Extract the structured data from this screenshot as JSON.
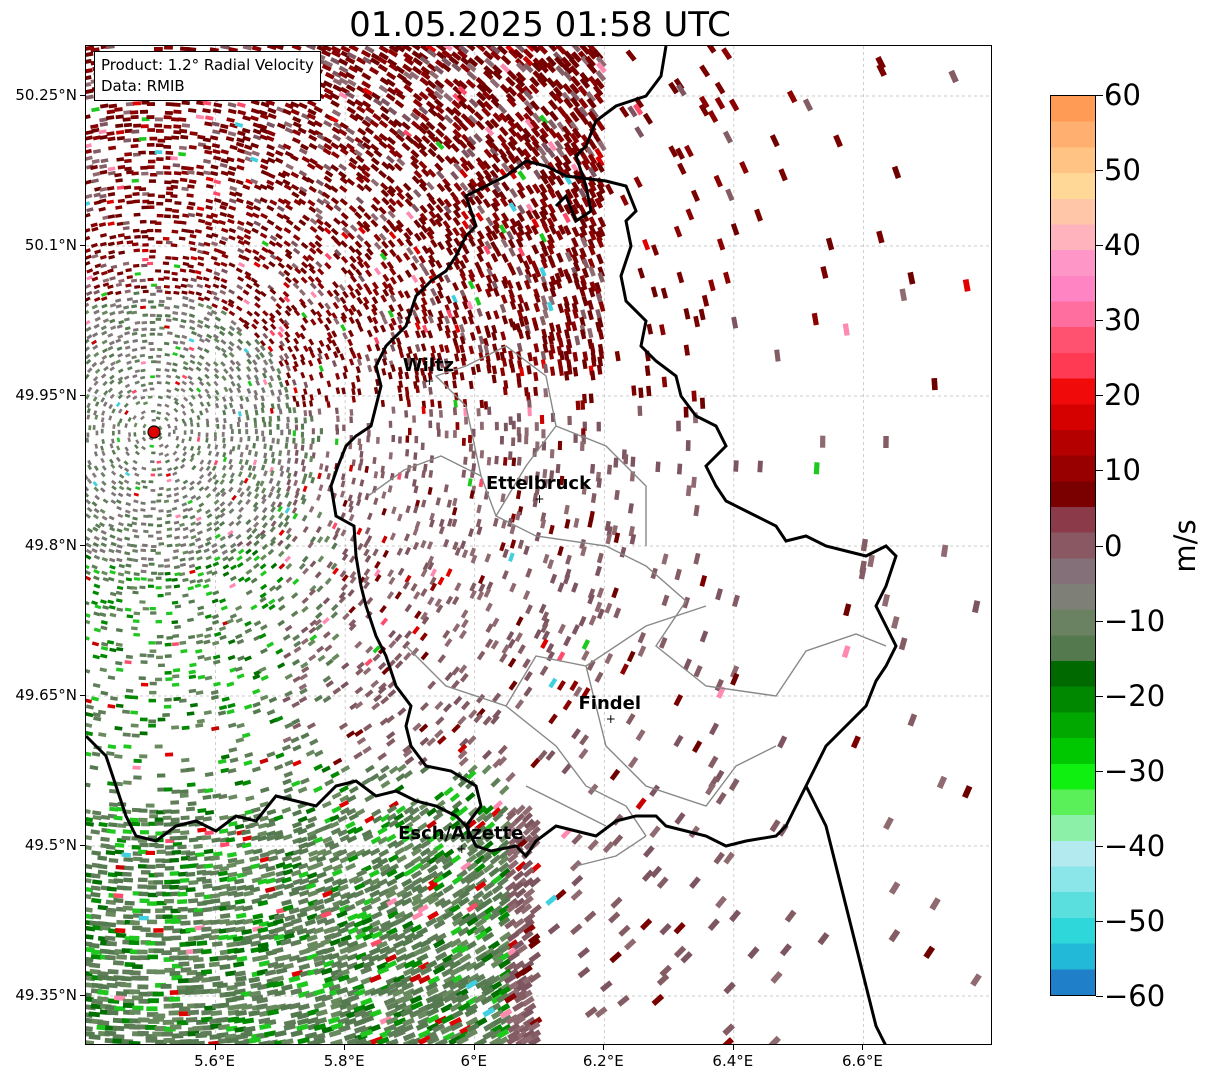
{
  "title": "01.05.2025 01:58 UTC",
  "info": {
    "product": "Product: 1.2° Radial Velocity",
    "source": "Data: RMIB"
  },
  "map": {
    "lon_range": [
      5.4,
      6.8
    ],
    "lat_range": [
      49.3,
      50.3
    ],
    "y_ticks": [
      "50.25°N",
      "50.1°N",
      "49.95°N",
      "49.8°N",
      "49.65°N",
      "49.5°N",
      "49.35°N"
    ],
    "x_ticks": [
      "5.6°E",
      "5.8°E",
      "6°E",
      "6.2°E",
      "6.4°E",
      "6.6°E"
    ],
    "radar_site": {
      "lon": 5.505,
      "lat": 49.914,
      "color": "#e00000"
    },
    "cities": [
      {
        "name": "Wiltz",
        "lon": 5.93,
        "lat": 49.965
      },
      {
        "name": "Ettelbruck",
        "lon": 6.1,
        "lat": 49.847
      },
      {
        "name": "Findel",
        "lon": 6.21,
        "lat": 49.627
      },
      {
        "name": "Esch/Alzette",
        "lon": 5.98,
        "lat": 49.497
      }
    ]
  },
  "colorbar": {
    "label": "m/s",
    "range": [
      -60,
      60
    ],
    "tick_labels": [
      "60",
      "50",
      "40",
      "30",
      "20",
      "10",
      "0",
      "−10",
      "−20",
      "−30",
      "−40",
      "−50",
      "−60"
    ],
    "colors_top_to_bottom": [
      "#ff9b55",
      "#ffb070",
      "#ffc384",
      "#ffd898",
      "#ffc7a8",
      "#ffb3bc",
      "#ff96c8",
      "#ff84c4",
      "#ff6e9e",
      "#ff5270",
      "#ff3a52",
      "#f00a0a",
      "#d50000",
      "#b50000",
      "#980000",
      "#7a0000",
      "#8a3a48",
      "#8a5862",
      "#847078",
      "#7e8078",
      "#6a8262",
      "#55794e",
      "#006a00",
      "#008800",
      "#00a800",
      "#00c800",
      "#10f010",
      "#5af05a",
      "#8cf0a8",
      "#b2eaf0",
      "#8ae6e8",
      "#5adede",
      "#2ed8da",
      "#22b8d8",
      "#1f7fc8"
    ]
  }
}
